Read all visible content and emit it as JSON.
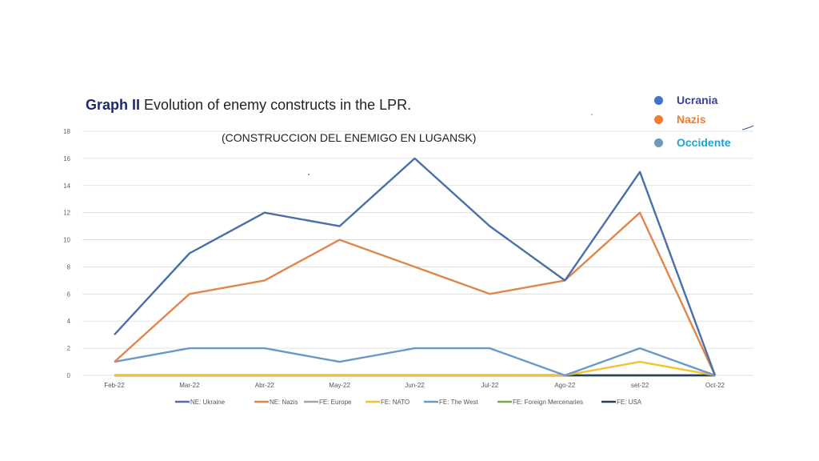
{
  "header": {
    "title_lead": "Graph II",
    "title_rest": " Evolution of enemy constructs in the LPR."
  },
  "overlay_legend": [
    {
      "label": "Ucrania",
      "dot_color": "#4472c4",
      "text_color": "#3b3f9a"
    },
    {
      "label": "Nazis",
      "dot_color": "#ed7d31",
      "text_color": "#ed7d31"
    },
    {
      "label": "Occidente",
      "dot_color": "#6a99bd",
      "text_color": "#1fa3d4"
    }
  ],
  "chart_data": {
    "type": "line",
    "title": "(CONSTRUCCION DEL ENEMIGO EN LUGANSK)",
    "xlabel": "",
    "ylabel": "",
    "categories": [
      "Feb-22",
      "Mar-22",
      "Abr-22",
      "May-22",
      "Jun-22",
      "Jul-22",
      "Ago-22",
      "set-22",
      "Oct-22"
    ],
    "yticks": [
      0,
      2,
      4,
      6,
      8,
      10,
      12,
      14,
      16,
      18
    ],
    "ylim": [
      0,
      18
    ],
    "grid": true,
    "legend_position": "bottom",
    "series": [
      {
        "name": "NE: Ukraine",
        "color": "#4a6fa8",
        "values": [
          3,
          9,
          12,
          11,
          16,
          11,
          7,
          15,
          0
        ]
      },
      {
        "name": "NE: Nazis",
        "color": "#e0864a",
        "values": [
          1,
          6,
          7,
          10,
          8,
          6,
          7,
          12,
          0
        ]
      },
      {
        "name": "FE: Europe",
        "color": "#a5a5a5",
        "values": [
          0,
          0,
          0,
          0,
          0,
          0,
          0,
          0,
          0
        ]
      },
      {
        "name": "FE: NATO",
        "color": "#f2c12e",
        "values": [
          0,
          0,
          0,
          0,
          0,
          0,
          0,
          1,
          0
        ]
      },
      {
        "name": "FE: The West",
        "color": "#6a99c6",
        "values": [
          1,
          2,
          2,
          1,
          2,
          2,
          0,
          2,
          0
        ]
      },
      {
        "name": "FE: Foreign Mercenaries",
        "color": "#70ad47",
        "values": [
          0,
          0,
          0,
          0,
          0,
          0,
          0,
          0,
          0
        ]
      },
      {
        "name": "FE: USA",
        "color": "#2b3e5c",
        "values": [
          0,
          0,
          0,
          0,
          0,
          0,
          0,
          0,
          0
        ]
      }
    ]
  }
}
